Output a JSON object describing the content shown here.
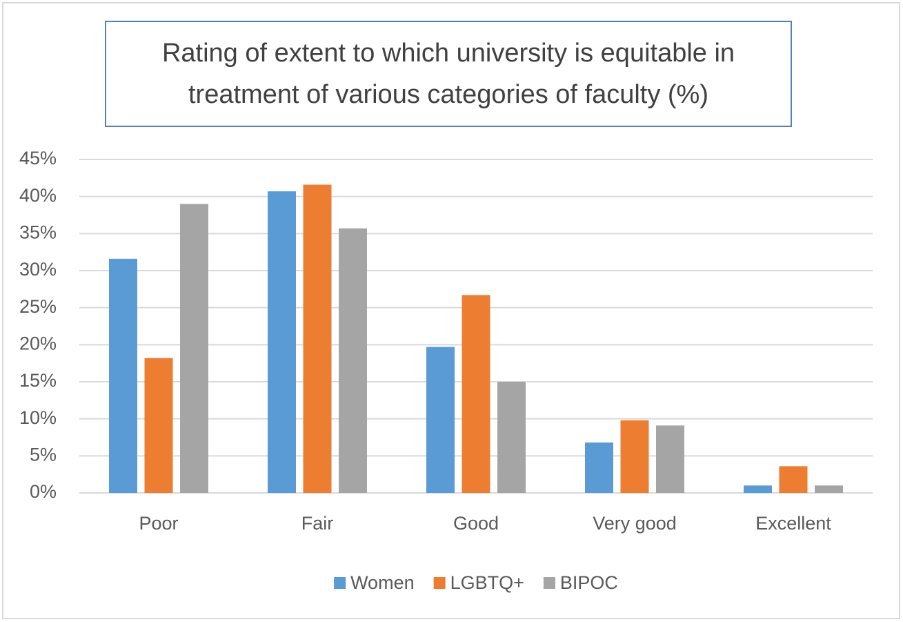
{
  "chart_data": {
    "type": "bar",
    "title": "Rating of extent to which university is equitable in treatment of various categories of faculty (%)",
    "categories": [
      "Poor",
      "Fair",
      "Good",
      "Very good",
      "Excellent"
    ],
    "series": [
      {
        "name": "Women",
        "color": "#5b9bd5",
        "values": [
          31.6,
          40.7,
          19.7,
          6.8,
          1.0
        ]
      },
      {
        "name": "LGBTQ+",
        "color": "#ed7d31",
        "values": [
          18.2,
          41.6,
          26.7,
          9.8,
          3.6
        ]
      },
      {
        "name": "BIPOC",
        "color": "#a5a5a5",
        "values": [
          39.0,
          35.7,
          15.0,
          9.1,
          1.0
        ]
      }
    ],
    "ylim": [
      0,
      45
    ],
    "yticks": [
      {
        "value": 0,
        "label": "0%"
      },
      {
        "value": 5,
        "label": "5%"
      },
      {
        "value": 10,
        "label": "10%"
      },
      {
        "value": 15,
        "label": "15%"
      },
      {
        "value": 20,
        "label": "20%"
      },
      {
        "value": 25,
        "label": "25%"
      },
      {
        "value": 30,
        "label": "30%"
      },
      {
        "value": 35,
        "label": "35%"
      },
      {
        "value": 40,
        "label": "40%"
      },
      {
        "value": 45,
        "label": "45%"
      }
    ],
    "grid": true,
    "legend": "bottom"
  }
}
